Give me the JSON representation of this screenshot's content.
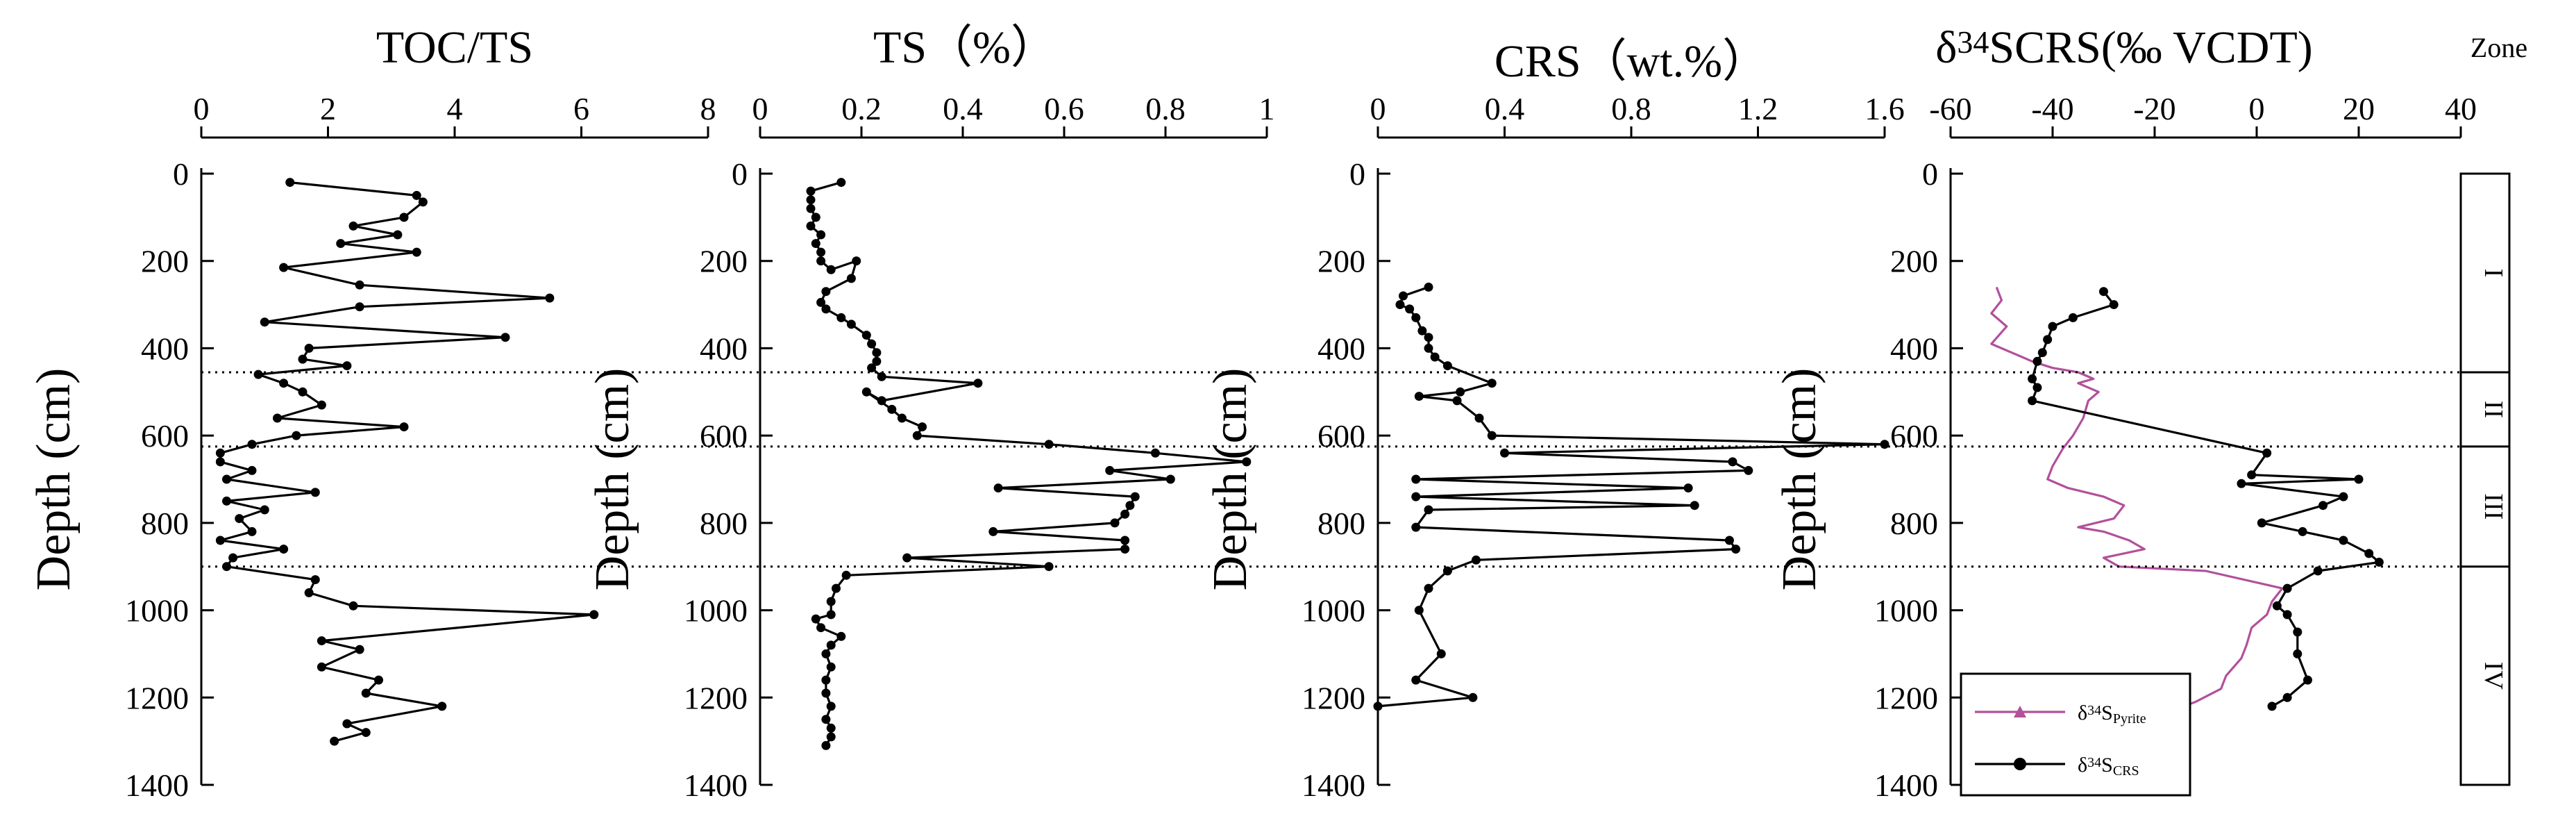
{
  "chart_data": [
    {
      "id": "toc_ts",
      "type": "line",
      "title": "TOC/TS",
      "ylabel": "Depth (cm)",
      "xlim": [
        0,
        8
      ],
      "xticks": [
        0,
        2,
        4,
        6,
        8
      ],
      "ylim": [
        0,
        1400
      ],
      "yticks": [
        0,
        200,
        400,
        600,
        800,
        1000,
        1200,
        1400
      ],
      "series": [
        {
          "name": "TOC/TS",
          "color": "#000000",
          "marker": "circle",
          "points": [
            [
              1.4,
              20
            ],
            [
              3.4,
              50
            ],
            [
              3.5,
              65
            ],
            [
              3.2,
              100
            ],
            [
              2.4,
              120
            ],
            [
              3.1,
              140
            ],
            [
              2.2,
              160
            ],
            [
              3.4,
              180
            ],
            [
              1.3,
              215
            ],
            [
              2.5,
              255
            ],
            [
              5.5,
              285
            ],
            [
              2.5,
              305
            ],
            [
              1.0,
              340
            ],
            [
              4.8,
              375
            ],
            [
              1.7,
              400
            ],
            [
              1.6,
              425
            ],
            [
              2.3,
              440
            ],
            [
              0.9,
              460
            ],
            [
              1.3,
              480
            ],
            [
              1.6,
              500
            ],
            [
              1.9,
              530
            ],
            [
              1.2,
              560
            ],
            [
              3.2,
              580
            ],
            [
              1.5,
              600
            ],
            [
              0.8,
              620
            ],
            [
              0.3,
              640
            ],
            [
              0.3,
              660
            ],
            [
              0.8,
              680
            ],
            [
              0.4,
              700
            ],
            [
              1.8,
              730
            ],
            [
              0.4,
              750
            ],
            [
              1.0,
              770
            ],
            [
              0.6,
              790
            ],
            [
              0.8,
              820
            ],
            [
              0.3,
              840
            ],
            [
              1.3,
              860
            ],
            [
              0.5,
              880
            ],
            [
              0.4,
              900
            ],
            [
              1.8,
              930
            ],
            [
              1.7,
              960
            ],
            [
              2.4,
              990
            ],
            [
              6.2,
              1010
            ],
            [
              1.9,
              1070
            ],
            [
              2.5,
              1090
            ],
            [
              1.9,
              1130
            ],
            [
              2.8,
              1160
            ],
            [
              2.6,
              1190
            ],
            [
              3.8,
              1220
            ],
            [
              2.3,
              1260
            ],
            [
              2.6,
              1280
            ],
            [
              2.1,
              1300
            ]
          ]
        }
      ]
    },
    {
      "id": "ts",
      "type": "line",
      "title": "TS（%）",
      "ylabel": "Depth (cm)",
      "xlim": [
        0,
        1
      ],
      "xticks": [
        0,
        0.2,
        0.4,
        0.6,
        0.8,
        1
      ],
      "xticklabels": [
        "0",
        "0.2",
        "0.4",
        "0.6",
        "0.8",
        "1"
      ],
      "ylim": [
        0,
        1400
      ],
      "yticks": [
        0,
        200,
        400,
        600,
        800,
        1000,
        1200,
        1400
      ],
      "series": [
        {
          "name": "TS",
          "color": "#000000",
          "marker": "circle",
          "points": [
            [
              0.16,
              20
            ],
            [
              0.1,
              40
            ],
            [
              0.1,
              60
            ],
            [
              0.1,
              80
            ],
            [
              0.11,
              100
            ],
            [
              0.1,
              120
            ],
            [
              0.12,
              140
            ],
            [
              0.11,
              160
            ],
            [
              0.12,
              180
            ],
            [
              0.12,
              200
            ],
            [
              0.14,
              220
            ],
            [
              0.19,
              200
            ],
            [
              0.18,
              240
            ],
            [
              0.13,
              270
            ],
            [
              0.12,
              295
            ],
            [
              0.13,
              310
            ],
            [
              0.16,
              330
            ],
            [
              0.18,
              345
            ],
            [
              0.21,
              370
            ],
            [
              0.22,
              390
            ],
            [
              0.23,
              410
            ],
            [
              0.23,
              430
            ],
            [
              0.22,
              445
            ],
            [
              0.24,
              465
            ],
            [
              0.43,
              480
            ],
            [
              0.24,
              520
            ],
            [
              0.21,
              500
            ],
            [
              0.26,
              540
            ],
            [
              0.28,
              560
            ],
            [
              0.32,
              580
            ],
            [
              0.31,
              600
            ],
            [
              0.57,
              620
            ],
            [
              0.78,
              640
            ],
            [
              0.96,
              660
            ],
            [
              0.69,
              680
            ],
            [
              0.81,
              700
            ],
            [
              0.47,
              720
            ],
            [
              0.74,
              740
            ],
            [
              0.73,
              760
            ],
            [
              0.72,
              780
            ],
            [
              0.7,
              800
            ],
            [
              0.46,
              820
            ],
            [
              0.72,
              840
            ],
            [
              0.72,
              860
            ],
            [
              0.29,
              880
            ],
            [
              0.57,
              900
            ],
            [
              0.17,
              920
            ],
            [
              0.15,
              950
            ],
            [
              0.14,
              980
            ],
            [
              0.14,
              1010
            ],
            [
              0.11,
              1020
            ],
            [
              0.12,
              1040
            ],
            [
              0.16,
              1060
            ],
            [
              0.14,
              1080
            ],
            [
              0.13,
              1100
            ],
            [
              0.14,
              1130
            ],
            [
              0.13,
              1160
            ],
            [
              0.13,
              1190
            ],
            [
              0.14,
              1220
            ],
            [
              0.13,
              1250
            ],
            [
              0.14,
              1270
            ],
            [
              0.14,
              1290
            ],
            [
              0.13,
              1310
            ]
          ]
        }
      ]
    },
    {
      "id": "crs",
      "type": "line",
      "title": "CRS（wt.%）",
      "ylabel": "Depth (cm)",
      "xlim": [
        0,
        1.6
      ],
      "xticks": [
        0,
        0.4,
        0.8,
        1.2,
        1.6
      ],
      "xticklabels": [
        "0",
        "0.4",
        "0.8",
        "1.2",
        "1.6"
      ],
      "ylim": [
        0,
        1400
      ],
      "yticks": [
        0,
        200,
        400,
        600,
        800,
        1000,
        1200,
        1400
      ],
      "series": [
        {
          "name": "CRS",
          "color": "#000000",
          "marker": "circle",
          "points": [
            [
              0.16,
              260
            ],
            [
              0.08,
              280
            ],
            [
              0.07,
              300
            ],
            [
              0.1,
              310
            ],
            [
              0.12,
              330
            ],
            [
              0.14,
              360
            ],
            [
              0.16,
              375
            ],
            [
              0.16,
              400
            ],
            [
              0.18,
              420
            ],
            [
              0.22,
              440
            ],
            [
              0.36,
              480
            ],
            [
              0.26,
              500
            ],
            [
              0.13,
              510
            ],
            [
              0.25,
              520
            ],
            [
              0.32,
              560
            ],
            [
              0.36,
              600
            ],
            [
              1.6,
              620
            ],
            [
              0.4,
              640
            ],
            [
              1.12,
              660
            ],
            [
              1.17,
              680
            ],
            [
              0.12,
              700
            ],
            [
              0.98,
              720
            ],
            [
              0.12,
              740
            ],
            [
              1.0,
              760
            ],
            [
              0.16,
              770
            ],
            [
              0.12,
              810
            ],
            [
              1.11,
              840
            ],
            [
              1.13,
              860
            ],
            [
              0.31,
              885
            ],
            [
              0.22,
              910
            ],
            [
              0.16,
              950
            ],
            [
              0.13,
              1000
            ],
            [
              0.2,
              1100
            ],
            [
              0.12,
              1160
            ],
            [
              0.3,
              1200
            ],
            [
              0.0,
              1220
            ]
          ]
        }
      ]
    },
    {
      "id": "d34s",
      "type": "line",
      "title": "δ34SCRS(‰ VCDT)",
      "title_main": "δ",
      "title_sup": "34",
      "title_rest": "SCRS(‰ VCDT)",
      "ylabel": "Depth (cm)",
      "xlim": [
        -60,
        40
      ],
      "xticks": [
        -60,
        -40,
        -20,
        0,
        20,
        40
      ],
      "xticklabels": [
        "-60",
        "-40",
        "-20",
        "0",
        "20",
        "40"
      ],
      "ylim": [
        0,
        1400
      ],
      "yticks": [
        0,
        200,
        400,
        600,
        800,
        1000,
        1200,
        1400
      ],
      "zone_header": "Zone",
      "zones": [
        {
          "label": "I",
          "top": 0,
          "bottom": 455
        },
        {
          "label": "II",
          "top": 455,
          "bottom": 625
        },
        {
          "label": "III",
          "top": 625,
          "bottom": 900
        },
        {
          "label": "IV",
          "top": 900,
          "bottom": 1400
        }
      ],
      "boundaries": [
        455,
        625,
        900
      ],
      "legend": [
        {
          "prefix": "δ",
          "sup": "34",
          "main": "S",
          "sub": "Pyrite",
          "color": "#b2509b",
          "marker": "triangle"
        },
        {
          "prefix": "δ",
          "sup": "34",
          "main": "S",
          "sub": "CRS",
          "color": "#000000",
          "marker": "circle"
        }
      ],
      "series": [
        {
          "name": "δ34S Pyrite",
          "color": "#b2509b",
          "marker": "triangle",
          "points": [
            [
              -51,
              260
            ],
            [
              -50,
              290
            ],
            [
              -52,
              320
            ],
            [
              -49,
              350
            ],
            [
              -52,
              390
            ],
            [
              -48,
              410
            ],
            [
              -44,
              430
            ],
            [
              -40,
              445
            ],
            [
              -35,
              455
            ],
            [
              -32,
              470
            ],
            [
              -35,
              480
            ],
            [
              -31,
              500
            ],
            [
              -33,
              520
            ],
            [
              -34,
              560
            ],
            [
              -36,
              600
            ],
            [
              -38,
              630
            ],
            [
              -40,
              670
            ],
            [
              -41,
              700
            ],
            [
              -37,
              720
            ],
            [
              -30,
              740
            ],
            [
              -26,
              760
            ],
            [
              -28,
              790
            ],
            [
              -35,
              810
            ],
            [
              -30,
              820
            ],
            [
              -25,
              840
            ],
            [
              -22,
              860
            ],
            [
              -30,
              880
            ],
            [
              -27,
              900
            ],
            [
              -10,
              910
            ],
            [
              5,
              950
            ],
            [
              3,
              980
            ],
            [
              2,
              1010
            ],
            [
              -1,
              1040
            ],
            [
              -2,
              1080
            ],
            [
              -3,
              1110
            ],
            [
              -6,
              1150
            ],
            [
              -7,
              1180
            ],
            [
              -12,
              1210
            ],
            [
              -19,
              1240
            ]
          ]
        },
        {
          "name": "δ34S CRS",
          "color": "#000000",
          "marker": "circle",
          "points": [
            [
              -30,
              270
            ],
            [
              -28,
              300
            ],
            [
              -36,
              330
            ],
            [
              -40,
              350
            ],
            [
              -41,
              380
            ],
            [
              -42,
              410
            ],
            [
              -43,
              430
            ],
            [
              -44,
              470
            ],
            [
              -43,
              490
            ],
            [
              -44,
              520
            ],
            [
              2,
              640
            ],
            [
              -1,
              690
            ],
            [
              20,
              700
            ],
            [
              -3,
              710
            ],
            [
              17,
              740
            ],
            [
              13,
              760
            ],
            [
              1,
              800
            ],
            [
              9,
              820
            ],
            [
              17,
              840
            ],
            [
              22,
              870
            ],
            [
              24,
              890
            ],
            [
              12,
              910
            ],
            [
              6,
              950
            ],
            [
              4,
              990
            ],
            [
              6,
              1010
            ],
            [
              8,
              1050
            ],
            [
              8,
              1100
            ],
            [
              10,
              1160
            ],
            [
              6,
              1200
            ],
            [
              3,
              1220
            ]
          ]
        }
      ]
    }
  ]
}
